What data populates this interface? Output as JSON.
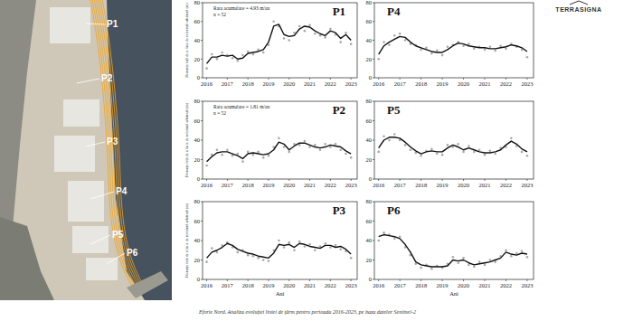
{
  "logo": "TERRASIGNA",
  "caption": "Eforie Nord. Analiza evoluției liniei de țărm pentru perioada 2016-2023, pe baza datelor Sentinel-2",
  "image_labels": [
    "P1",
    "P2",
    "P3",
    "P4",
    "P5",
    "P6"
  ],
  "chart_data": [
    {
      "type": "line",
      "title": "P1",
      "annotations": [
        "Rata acumulare = 4.93 m/an",
        "n = 52"
      ],
      "y_label": "Distanța față de o linie de referință arbitrară (m)",
      "x": [
        2016,
        2016.25,
        2016.5,
        2016.75,
        2017,
        2017.25,
        2017.5,
        2017.75,
        2018,
        2018.25,
        2018.5,
        2018.75,
        2019,
        2019.25,
        2019.5,
        2019.75,
        2020,
        2020.25,
        2020.5,
        2020.75,
        2021,
        2021.25,
        2021.5,
        2021.75,
        2022,
        2022.25,
        2022.5,
        2022.75,
        2023
      ],
      "xlim": [
        2015.8,
        2023.3
      ],
      "xticks": [
        2016,
        2017,
        2018,
        2019,
        2020,
        2021,
        2022,
        2023
      ],
      "ylim": [
        0,
        80
      ],
      "yticks": [
        0,
        20,
        40,
        60,
        80
      ],
      "grid": false,
      "series": [
        {
          "type": "scatter",
          "color": "#a8a8a8",
          "marker": "circle",
          "values": [
            10,
            25,
            20,
            27,
            24,
            21,
            18,
            24,
            28,
            25,
            30,
            27,
            35,
            60,
            55,
            42,
            40,
            48,
            55,
            50,
            56,
            47,
            45,
            43,
            52,
            46,
            38,
            48,
            36
          ]
        },
        {
          "type": "line",
          "color": "#111111",
          "line_style": "solid",
          "values": [
            15,
            22,
            22,
            24,
            23,
            24,
            20,
            21,
            26,
            27,
            28,
            30,
            38,
            55,
            57,
            46,
            44,
            45,
            52,
            55,
            54,
            50,
            47,
            45,
            50,
            48,
            42,
            46,
            40
          ]
        }
      ]
    },
    {
      "type": "line",
      "title": "P2",
      "annotations": [
        "Rata acumulare = 1.81 m/an",
        "n = 52"
      ],
      "y_label": "Distanța față de o linie de referință arbitrară (m)",
      "x": [
        2016,
        2016.25,
        2016.5,
        2016.75,
        2017,
        2017.25,
        2017.5,
        2017.75,
        2018,
        2018.25,
        2018.5,
        2018.75,
        2019,
        2019.25,
        2019.5,
        2019.75,
        2020,
        2020.25,
        2020.5,
        2020.75,
        2021,
        2021.25,
        2021.5,
        2021.75,
        2022,
        2022.25,
        2022.5,
        2022.75,
        2023
      ],
      "xlim": [
        2015.8,
        2023.3
      ],
      "xticks": [
        2016,
        2017,
        2018,
        2019,
        2020,
        2021,
        2022,
        2023
      ],
      "ylim": [
        0,
        80
      ],
      "yticks": [
        0,
        20,
        40,
        60,
        80
      ],
      "grid": false,
      "series": [
        {
          "type": "scatter",
          "color": "#a8a8a8",
          "marker": "circle",
          "values": [
            14,
            25,
            30,
            25,
            30,
            24,
            26,
            18,
            28,
            25,
            28,
            22,
            24,
            33,
            42,
            33,
            28,
            36,
            35,
            39,
            33,
            35,
            30,
            36,
            33,
            36,
            30,
            26,
            22
          ]
        },
        {
          "type": "line",
          "color": "#111111",
          "line_style": "solid",
          "values": [
            18,
            23,
            27,
            28,
            28,
            26,
            24,
            21,
            26,
            27,
            26,
            25,
            26,
            30,
            38,
            36,
            30,
            34,
            37,
            37,
            35,
            33,
            32,
            33,
            35,
            34,
            33,
            29,
            26
          ]
        }
      ]
    },
    {
      "type": "line",
      "title": "P3",
      "x_label": "Ani",
      "y_label": "Distanța față de o linie de referință arbitrară (m)",
      "x": [
        2016,
        2016.25,
        2016.5,
        2016.75,
        2017,
        2017.25,
        2017.5,
        2017.75,
        2018,
        2018.25,
        2018.5,
        2018.75,
        2019,
        2019.25,
        2019.5,
        2019.75,
        2020,
        2020.25,
        2020.5,
        2020.75,
        2021,
        2021.25,
        2021.5,
        2021.75,
        2022,
        2022.25,
        2022.5,
        2022.75,
        2023
      ],
      "xlim": [
        2015.8,
        2023.3
      ],
      "xticks": [
        2016,
        2017,
        2018,
        2019,
        2020,
        2021,
        2022,
        2023
      ],
      "ylim": [
        0,
        80
      ],
      "yticks": [
        0,
        20,
        40,
        60,
        80
      ],
      "grid": false,
      "series": [
        {
          "type": "scatter",
          "color": "#a8a8a8",
          "marker": "circle",
          "values": [
            18,
            32,
            28,
            35,
            38,
            33,
            28,
            30,
            25,
            24,
            22,
            20,
            19,
            30,
            40,
            33,
            38,
            30,
            39,
            34,
            36,
            30,
            34,
            37,
            33,
            35,
            31,
            29,
            22
          ]
        },
        {
          "type": "line",
          "color": "#111111",
          "line_style": "solid",
          "values": [
            22,
            28,
            30,
            33,
            37,
            35,
            31,
            29,
            27,
            26,
            24,
            23,
            22,
            27,
            36,
            35,
            36,
            33,
            37,
            36,
            34,
            33,
            32,
            35,
            35,
            33,
            34,
            31,
            26
          ]
        }
      ]
    },
    {
      "type": "line",
      "title": "P4",
      "x": [
        2016,
        2016.25,
        2016.5,
        2016.75,
        2017,
        2017.25,
        2017.5,
        2017.75,
        2018,
        2018.25,
        2018.5,
        2018.75,
        2019,
        2019.25,
        2019.5,
        2019.75,
        2020,
        2020.25,
        2020.5,
        2020.75,
        2021,
        2021.25,
        2021.5,
        2021.75,
        2022,
        2022.25,
        2022.5,
        2022.75,
        2023
      ],
      "xlim": [
        2015.8,
        2023.3
      ],
      "xticks": [
        2016,
        2017,
        2018,
        2019,
        2020,
        2021,
        2022,
        2023
      ],
      "ylim": [
        0,
        80
      ],
      "yticks": [
        0,
        20,
        40,
        60,
        80
      ],
      "grid": false,
      "series": [
        {
          "type": "scatter",
          "color": "#a8a8a8",
          "marker": "circle",
          "values": [
            20,
            38,
            35,
            45,
            47,
            40,
            36,
            35,
            30,
            32,
            26,
            29,
            24,
            33,
            35,
            38,
            34,
            36,
            31,
            33,
            30,
            33,
            29,
            34,
            31,
            36,
            33,
            30,
            22
          ]
        },
        {
          "type": "line",
          "color": "#111111",
          "line_style": "solid",
          "values": [
            25,
            34,
            38,
            41,
            44,
            43,
            38,
            34,
            32,
            30,
            28,
            27,
            27,
            30,
            34,
            37,
            36,
            34,
            33,
            32,
            32,
            31,
            31,
            32,
            33,
            35,
            34,
            32,
            28
          ]
        }
      ]
    },
    {
      "type": "line",
      "title": "P5",
      "x": [
        2016,
        2016.25,
        2016.5,
        2016.75,
        2017,
        2017.25,
        2017.5,
        2017.75,
        2018,
        2018.25,
        2018.5,
        2018.75,
        2019,
        2019.25,
        2019.5,
        2019.75,
        2020,
        2020.25,
        2020.5,
        2020.75,
        2021,
        2021.25,
        2021.5,
        2021.75,
        2022,
        2022.25,
        2022.5,
        2022.75,
        2023
      ],
      "xlim": [
        2015.8,
        2023.3
      ],
      "xticks": [
        2016,
        2017,
        2018,
        2019,
        2020,
        2021,
        2022,
        2023
      ],
      "ylim": [
        0,
        80
      ],
      "yticks": [
        0,
        20,
        40,
        60,
        80
      ],
      "grid": false,
      "series": [
        {
          "type": "scatter",
          "color": "#a8a8a8",
          "marker": "circle",
          "values": [
            28,
            44,
            40,
            46,
            40,
            35,
            30,
            27,
            24,
            29,
            31,
            26,
            25,
            35,
            33,
            36,
            28,
            34,
            28,
            30,
            25,
            29,
            26,
            32,
            33,
            42,
            34,
            28,
            24
          ]
        },
        {
          "type": "line",
          "color": "#111111",
          "line_style": "solid",
          "values": [
            32,
            40,
            43,
            43,
            42,
            38,
            33,
            29,
            26,
            28,
            29,
            28,
            28,
            32,
            35,
            33,
            30,
            32,
            30,
            28,
            27,
            27,
            28,
            30,
            35,
            39,
            36,
            31,
            28
          ]
        }
      ]
    },
    {
      "type": "line",
      "title": "P6",
      "x_label": "Ani",
      "x": [
        2016,
        2016.25,
        2016.5,
        2016.75,
        2017,
        2017.25,
        2017.5,
        2017.75,
        2018,
        2018.25,
        2018.5,
        2018.75,
        2019,
        2019.25,
        2019.5,
        2019.75,
        2020,
        2020.25,
        2020.5,
        2020.75,
        2021,
        2021.25,
        2021.5,
        2021.75,
        2022,
        2022.25,
        2022.5,
        2022.75,
        2023
      ],
      "xlim": [
        2015.8,
        2023.3
      ],
      "xticks": [
        2016,
        2017,
        2018,
        2019,
        2020,
        2021,
        2022,
        2023
      ],
      "ylim": [
        0,
        80
      ],
      "yticks": [
        0,
        20,
        40,
        60,
        80
      ],
      "grid": false,
      "series": [
        {
          "type": "scatter",
          "color": "#a8a8a8",
          "marker": "circle",
          "values": [
            40,
            48,
            46,
            42,
            44,
            33,
            25,
            16,
            12,
            15,
            11,
            14,
            12,
            16,
            23,
            17,
            22,
            15,
            13,
            18,
            15,
            20,
            18,
            24,
            30,
            24,
            27,
            29,
            23
          ]
        },
        {
          "type": "line",
          "color": "#111111",
          "line_style": "solid",
          "values": [
            44,
            46,
            45,
            44,
            42,
            36,
            28,
            18,
            15,
            14,
            13,
            13,
            13,
            14,
            20,
            19,
            20,
            17,
            15,
            16,
            17,
            18,
            20,
            22,
            28,
            26,
            25,
            27,
            26
          ]
        }
      ]
    }
  ]
}
